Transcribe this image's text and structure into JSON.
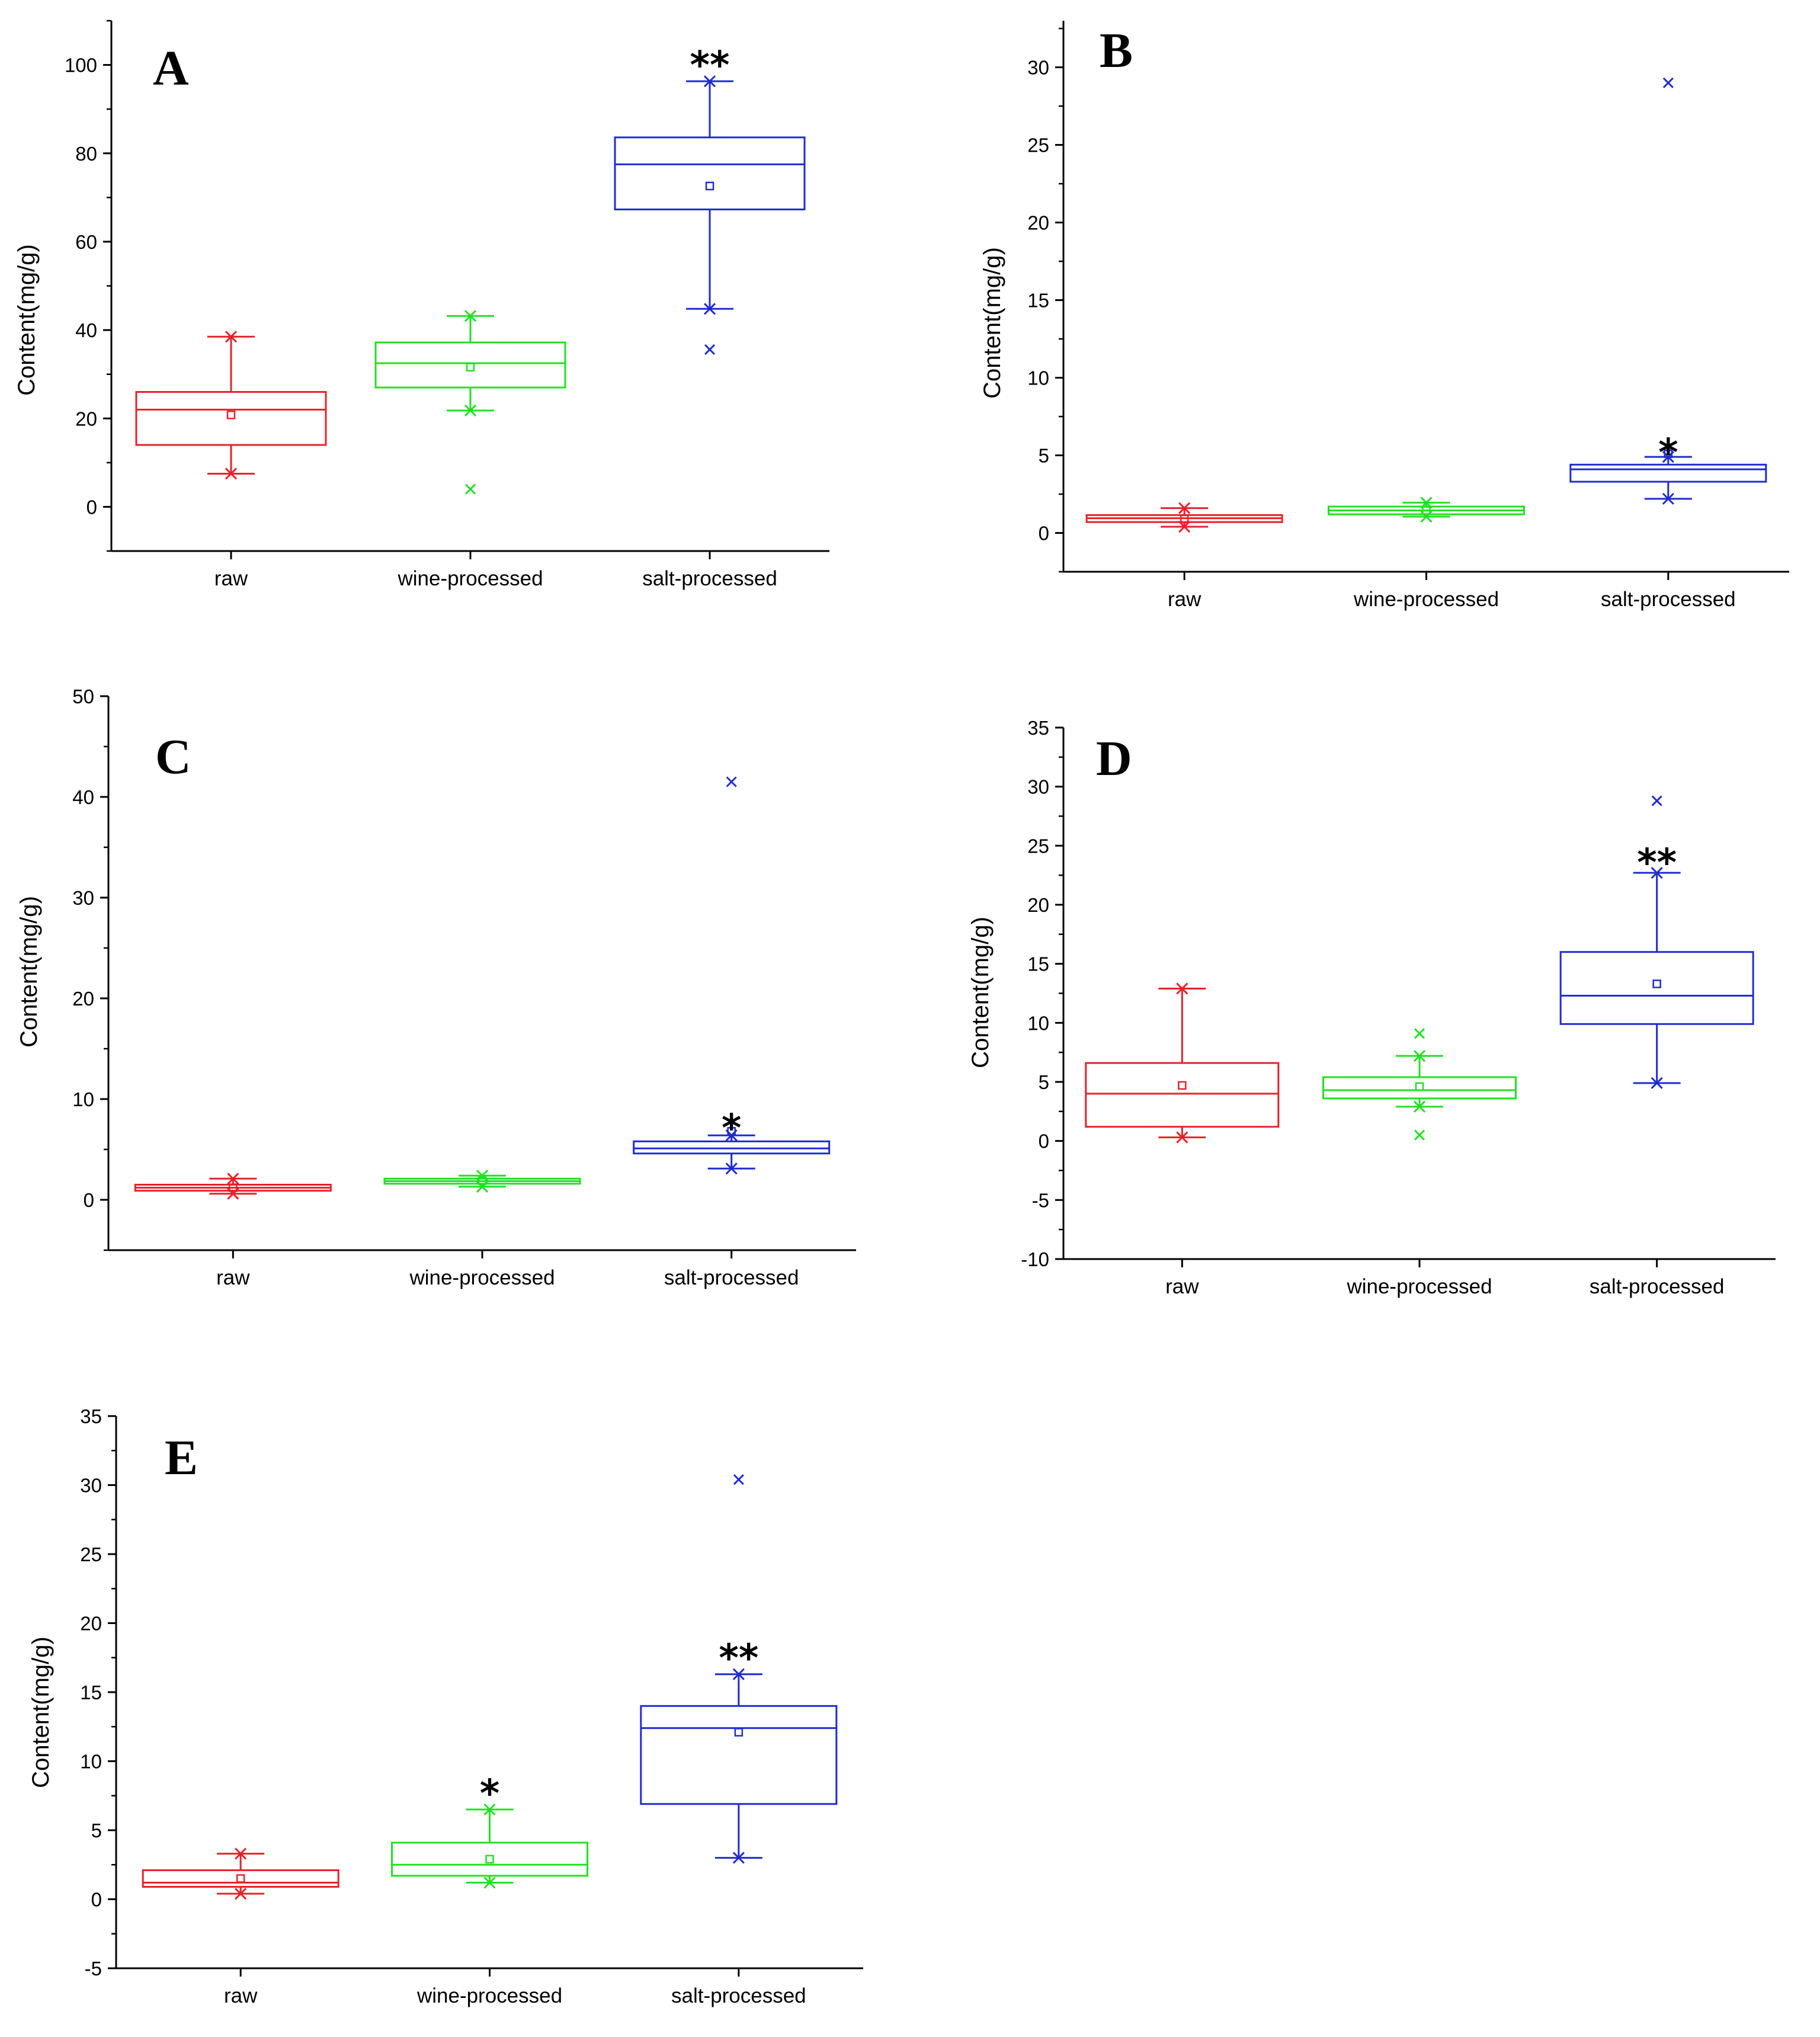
{
  "chart_data": [
    {
      "panel_label": "A",
      "type": "box",
      "ylabel": "Content(mg/g)",
      "ylim": [
        -10,
        110
      ],
      "yticks": [
        0,
        20,
        40,
        60,
        80,
        100
      ],
      "ytick_labels": [
        "0",
        "20",
        "40",
        "60",
        "80",
        "100"
      ],
      "categories": [
        "raw",
        "wine-processed",
        "salt-processed"
      ],
      "boxes": [
        {
          "q1": 14,
          "median": 22,
          "q3": 26,
          "whisker_low": 7.5,
          "whisker_high": 38.5,
          "mean": 20.8,
          "outliers": [],
          "color": "#e8202a",
          "significance": ""
        },
        {
          "q1": 27,
          "median": 32.5,
          "q3": 37.2,
          "whisker_low": 21.8,
          "whisker_high": 43.2,
          "mean": 31.6,
          "outliers": [
            4
          ],
          "color": "#22e022",
          "significance": ""
        },
        {
          "q1": 67.3,
          "median": 77.5,
          "q3": 83.6,
          "whisker_low": 44.8,
          "whisker_high": 96.3,
          "mean": 72.6,
          "outliers": [
            35.6
          ],
          "color": "#1f2bd0",
          "significance": "**"
        }
      ]
    },
    {
      "panel_label": "B",
      "type": "box",
      "ylabel": "Content(mg/g)",
      "ylim": [
        -2.5,
        33
      ],
      "yticks": [
        0,
        5,
        10,
        15,
        20,
        25,
        30
      ],
      "ytick_labels": [
        "0",
        "5",
        "10",
        "15",
        "20",
        "25",
        "30"
      ],
      "categories": [
        "raw",
        "wine-processed",
        "salt-processed"
      ],
      "boxes": [
        {
          "q1": 0.7,
          "median": 0.95,
          "q3": 1.15,
          "whisker_low": 0.4,
          "whisker_high": 1.6,
          "mean": 0.9,
          "outliers": [],
          "color": "#e8202a",
          "significance": ""
        },
        {
          "q1": 1.2,
          "median": 1.45,
          "q3": 1.7,
          "whisker_low": 1.05,
          "whisker_high": 1.95,
          "mean": 1.45,
          "outliers": [],
          "color": "#22e022",
          "significance": ""
        },
        {
          "q1": 3.3,
          "median": 4.1,
          "q3": 4.4,
          "whisker_low": 2.2,
          "whisker_high": 4.9,
          "mean": 5.1,
          "outliers": [
            29
          ],
          "color": "#1f2bd0",
          "significance": "*"
        }
      ]
    },
    {
      "panel_label": "C",
      "type": "box",
      "ylabel": "Content(mg/g)",
      "ylim": [
        -5,
        50
      ],
      "yticks": [
        0,
        10,
        20,
        30,
        40,
        50
      ],
      "ytick_labels": [
        "0",
        "10",
        "20",
        "30",
        "40",
        "50"
      ],
      "categories": [
        "raw",
        "wine-processed",
        "salt-processed"
      ],
      "boxes": [
        {
          "q1": 0.9,
          "median": 1.2,
          "q3": 1.5,
          "whisker_low": 0.6,
          "whisker_high": 2.1,
          "mean": 1.2,
          "outliers": [],
          "color": "#e8202a",
          "significance": ""
        },
        {
          "q1": 1.6,
          "median": 1.85,
          "q3": 2.1,
          "whisker_low": 1.3,
          "whisker_high": 2.4,
          "mean": 1.9,
          "outliers": [],
          "color": "#22e022",
          "significance": ""
        },
        {
          "q1": 4.6,
          "median": 5.1,
          "q3": 5.8,
          "whisker_low": 3.1,
          "whisker_high": 6.4,
          "mean": 6.8,
          "outliers": [
            41.5
          ],
          "color": "#1f2bd0",
          "significance": "*"
        }
      ]
    },
    {
      "panel_label": "D",
      "type": "box",
      "ylabel": "Content(mg/g)",
      "ylim": [
        -10,
        35
      ],
      "yticks": [
        -10,
        -5,
        0,
        5,
        10,
        15,
        20,
        25,
        30,
        35
      ],
      "ytick_labels": [
        "-10",
        "-5",
        "0",
        "5",
        "10",
        "15",
        "20",
        "25",
        "30",
        "35"
      ],
      "categories": [
        "raw",
        "wine-processed",
        "salt-processed"
      ],
      "boxes": [
        {
          "q1": 1.2,
          "median": 4,
          "q3": 6.6,
          "whisker_low": 0.3,
          "whisker_high": 12.9,
          "mean": 4.7,
          "outliers": [],
          "color": "#e8202a",
          "significance": ""
        },
        {
          "q1": 3.6,
          "median": 4.3,
          "q3": 5.4,
          "whisker_low": 2.9,
          "whisker_high": 7.2,
          "mean": 4.6,
          "outliers": [
            9.1,
            0.5
          ],
          "color": "#22e022",
          "significance": ""
        },
        {
          "q1": 9.9,
          "median": 12.3,
          "q3": 16,
          "whisker_low": 4.9,
          "whisker_high": 22.7,
          "mean": 13.3,
          "outliers": [
            28.8
          ],
          "color": "#1f2bd0",
          "significance": "**"
        }
      ]
    },
    {
      "panel_label": "E",
      "type": "box",
      "ylabel": "Content(mg/g)",
      "ylim": [
        -5,
        35
      ],
      "yticks": [
        -5,
        0,
        5,
        10,
        15,
        20,
        25,
        30,
        35
      ],
      "ytick_labels": [
        "-5",
        "0",
        "5",
        "10",
        "15",
        "20",
        "25",
        "30",
        "35"
      ],
      "categories": [
        "raw",
        "wine-processed",
        "salt-processed"
      ],
      "boxes": [
        {
          "q1": 0.9,
          "median": 1.2,
          "q3": 2.1,
          "whisker_low": 0.4,
          "whisker_high": 3.3,
          "mean": 1.5,
          "outliers": [],
          "color": "#e8202a",
          "significance": ""
        },
        {
          "q1": 1.7,
          "median": 2.5,
          "q3": 4.1,
          "whisker_low": 1.2,
          "whisker_high": 6.5,
          "mean": 2.9,
          "outliers": [],
          "color": "#22e022",
          "significance": "*"
        },
        {
          "q1": 6.9,
          "median": 12.4,
          "q3": 14,
          "whisker_low": 3,
          "whisker_high": 16.3,
          "mean": 12.1,
          "outliers": [
            30.4
          ],
          "color": "#1f2bd0",
          "significance": "**"
        }
      ]
    }
  ]
}
